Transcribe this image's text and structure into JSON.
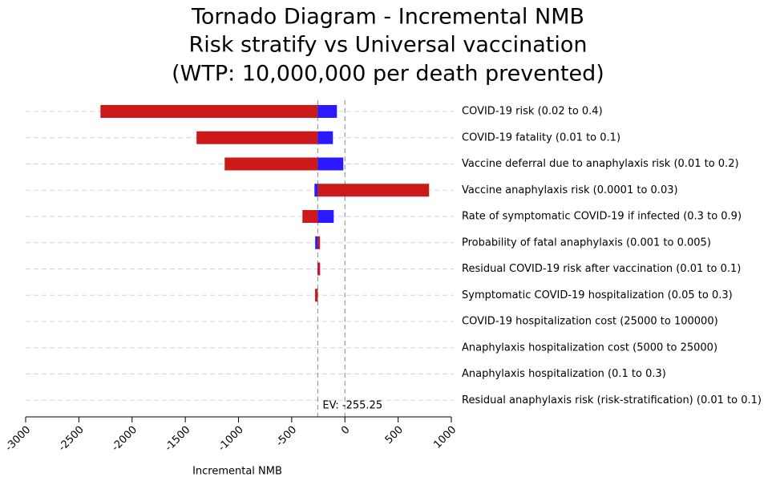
{
  "chart_data": {
    "type": "tornado",
    "title": [
      "Tornado Diagram - Incremental NMB",
      "Risk stratify vs  Universal vaccination",
      "(WTP: 10,000,000 per death prevented)"
    ],
    "x_label": "Incremental NMB",
    "categories": [
      "COVID-19 risk (0.02 to 0.4)",
      "COVID-19 fatality (0.01 to 0.1)",
      "Vaccine deferral due to anaphylaxis risk (0.01 to 0.2)",
      "Vaccine anaphylaxis risk (0.0001 to 0.03)",
      "Rate of symptomatic COVID-19 if infected (0.3 to 0.9)",
      "Probability of fatal anaphylaxis (0.001 to 0.005)",
      "Residual COVID-19 risk after vaccination (0.01 to 0.1)",
      "Symptomatic COVID-19 hospitalization (0.05 to 0.3)",
      "COVID-19 hospitalization cost (25000 to 100000)",
      "Anaphylaxis hospitalization cost (5000 to 25000)",
      "Anaphylaxis hospitalization (0.1 to 0.3)",
      "Residual anaphylaxis risk (risk-stratification) (0.01 to 0.1)"
    ],
    "series": [
      {
        "color": "#cc1a1a",
        "values": [
          -2297,
          -1394,
          -1130,
          791,
          -399,
          -234,
          -233,
          -280,
          -255.25,
          -255.25,
          -255.25,
          -255.25
        ]
      },
      {
        "color": "#2b1aff",
        "values": [
          -75,
          -113,
          -15,
          -286,
          -105,
          -279,
          -258,
          -255.25,
          -255.25,
          -255.25,
          -255.25,
          -255.25
        ]
      }
    ],
    "ev": {
      "value": -255.25,
      "label": "EV: -255.25"
    },
    "xlim": [
      -3000,
      1000
    ],
    "xticks": [
      -3000,
      -2500,
      -2000,
      -1500,
      -1000,
      -500,
      0,
      500,
      1000
    ]
  }
}
